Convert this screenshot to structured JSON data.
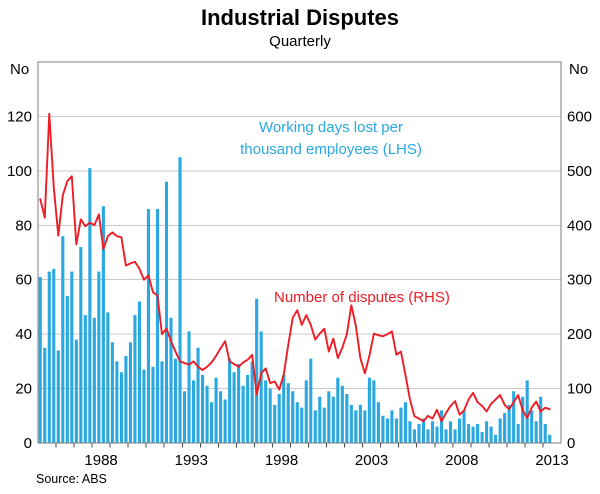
{
  "page": {
    "title": "Industrial Disputes",
    "subtitle": "Quarterly",
    "source": "Source: ABS"
  },
  "axes": {
    "left_unit": "No",
    "right_unit": "No",
    "left_ticks": [
      0,
      20,
      40,
      60,
      80,
      100,
      120
    ],
    "right_ticks": [
      0,
      100,
      200,
      300,
      400,
      500,
      600
    ],
    "x_tick_labels": [
      "1988",
      "1993",
      "1998",
      "2003",
      "2008",
      "2013"
    ]
  },
  "legend": {
    "bars_label_line1": "Working days lost per",
    "bars_label_line2": "thousand employees (LHS)",
    "line_label": "Number of disputes (RHS)"
  },
  "colors": {
    "bars": "#29A8E1",
    "line": "#EE1C25",
    "grid": "#C9C9C9",
    "frame": "#7E7E7E",
    "tick": "#4D4D4D",
    "text": "#000000"
  },
  "chart_data": {
    "type": "combo-bar-line",
    "title": "Industrial Disputes",
    "subtitle": "Quarterly",
    "frequency": "quarterly",
    "x_start": "1985Q1",
    "x_end": "2013Q2",
    "x_axis_year_span": [
      1985,
      2014
    ],
    "x_year_tick_range": [
      1986,
      2013
    ],
    "x_tick_labels_years": [
      1988,
      1993,
      1998,
      2003,
      2008,
      2013
    ],
    "lhs_axis": {
      "label": "No",
      "range": [
        0,
        140
      ],
      "labeled_ticks": [
        0,
        20,
        40,
        60,
        80,
        100,
        120
      ]
    },
    "rhs_axis": {
      "label": "No",
      "range": [
        0,
        700
      ],
      "labeled_ticks": [
        0,
        100,
        200,
        300,
        400,
        500,
        600
      ]
    },
    "grid": "horizontal-only",
    "series": [
      {
        "name": "Working days lost per thousand employees",
        "axis": "LHS",
        "type": "bar",
        "values": [
          61,
          35,
          63,
          64,
          34,
          76,
          54,
          63,
          38,
          72,
          47,
          101,
          46,
          63,
          87,
          48,
          37,
          30,
          26,
          32,
          37,
          47,
          52,
          27,
          86,
          28,
          86,
          30,
          96,
          46,
          31,
          105,
          19,
          41,
          23,
          35,
          25,
          21,
          15,
          24,
          19,
          16,
          31,
          26,
          29,
          21,
          25,
          30,
          53,
          41,
          23,
          20,
          14,
          18,
          25,
          22,
          19,
          15,
          13,
          23,
          31,
          12,
          17,
          13,
          19,
          17,
          24,
          21,
          18,
          14,
          12,
          14,
          12,
          24,
          23,
          15,
          10,
          9,
          12,
          9,
          13,
          15,
          8,
          5,
          7,
          9,
          5,
          8,
          6,
          12,
          5,
          8,
          5,
          9,
          12,
          7,
          6,
          7,
          4,
          8,
          6,
          3,
          9,
          11,
          14,
          19,
          7,
          17,
          23,
          12,
          8,
          17,
          7,
          3
        ]
      },
      {
        "name": "Number of disputes",
        "axis": "RHS",
        "type": "line",
        "values": [
          448,
          414,
          605,
          470,
          381,
          455,
          481,
          490,
          365,
          411,
          398,
          405,
          400,
          420,
          356,
          380,
          387,
          380,
          378,
          326,
          330,
          333,
          320,
          300,
          308,
          277,
          271,
          200,
          210,
          187,
          168,
          150,
          147,
          144,
          150,
          140,
          134,
          140,
          148,
          160,
          174,
          187,
          150,
          145,
          140,
          148,
          153,
          162,
          89,
          128,
          137,
          110,
          113,
          98,
          125,
          180,
          230,
          244,
          217,
          235,
          217,
          190,
          201,
          210,
          168,
          192,
          156,
          175,
          200,
          253,
          215,
          156,
          128,
          160,
          201,
          198,
          196,
          200,
          205,
          162,
          168,
          125,
          80,
          49,
          45,
          40,
          50,
          45,
          61,
          40,
          55,
          68,
          77,
          52,
          60,
          80,
          92,
          75,
          68,
          58,
          72,
          80,
          88,
          70,
          62,
          75,
          88,
          60,
          46,
          65,
          76,
          58,
          65,
          62
        ]
      }
    ]
  }
}
